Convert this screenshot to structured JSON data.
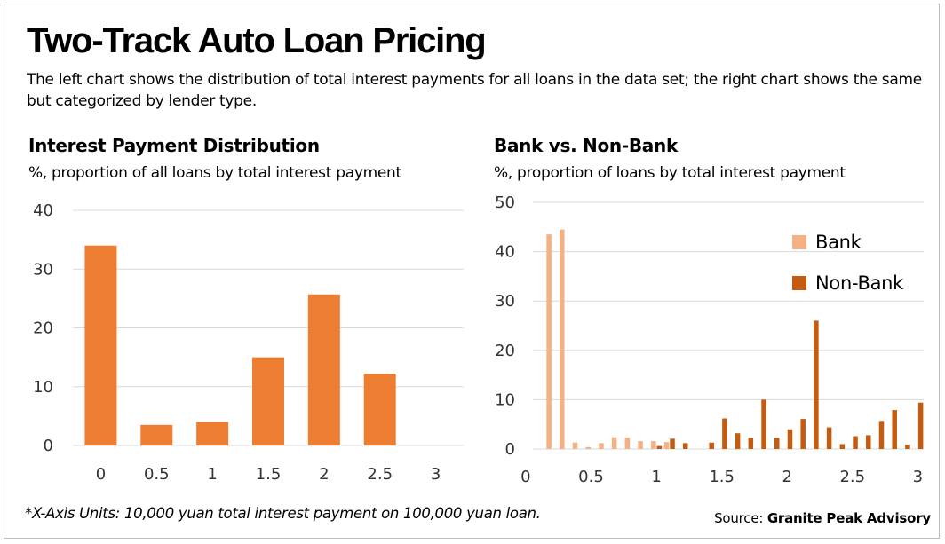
{
  "header": {
    "title": "Two-Track Auto Loan Pricing",
    "subtitle": "The left chart shows the distribution of total interest payments for all loans in the data set; the right chart shows the same but categorized by lender type."
  },
  "footer": {
    "footnote": "*X-Axis Units: 10,000 yuan total interest payment on 100,000 yuan loan.",
    "source_prefix": "Source: ",
    "source_name": "Granite Peak Advisory"
  },
  "colors": {
    "left_bar": "#ED7D31",
    "bank": "#F4B183",
    "non_bank": "#C55A11",
    "gridline": "#D9D9D9"
  },
  "chart_data": [
    {
      "type": "bar",
      "title": "Interest Payment Distribution",
      "subtitle": "%, proportion of all loans by total interest payment",
      "categories": [
        "0",
        "0.5",
        "1",
        "1.5",
        "2",
        "2.5",
        "3"
      ],
      "values": [
        34,
        3.5,
        4,
        15,
        25.7,
        12.2,
        0
      ],
      "ylim": [
        0,
        40
      ],
      "yticks": [
        0,
        10,
        20,
        30,
        40
      ],
      "grid": true
    },
    {
      "type": "bar",
      "title": "Bank vs. Non-Bank",
      "subtitle": "%, proportion of loans by total interest payment",
      "xlim": [
        0,
        3
      ],
      "xticks": [
        "0",
        "0.5",
        "1",
        "1.5",
        "2",
        "2.5",
        "3"
      ],
      "ylim": [
        0,
        50
      ],
      "yticks": [
        0,
        10,
        20,
        30,
        40,
        50
      ],
      "grid": true,
      "legend_position": "top-right",
      "x": [
        0.2,
        0.3,
        0.4,
        0.5,
        0.6,
        0.7,
        0.8,
        0.9,
        1.0,
        1.1,
        1.2,
        1.3,
        1.4,
        1.5,
        1.6,
        1.7,
        1.8,
        1.9,
        2.0,
        2.1,
        2.2,
        2.3,
        2.4,
        2.5,
        2.6,
        2.7,
        2.8,
        2.9,
        3.0
      ],
      "series": [
        {
          "name": "Bank",
          "values": [
            43.5,
            44.5,
            1.3,
            0.4,
            1.2,
            2.4,
            2.3,
            1.6,
            1.6,
            1.4,
            0,
            0,
            0,
            0,
            0,
            0,
            0,
            0,
            0,
            0,
            0,
            0,
            0,
            0,
            0,
            0,
            0,
            0,
            0
          ]
        },
        {
          "name": "Non-Bank",
          "values": [
            0,
            0,
            0,
            0,
            0,
            0,
            0,
            0,
            0.6,
            2.1,
            1.2,
            0,
            1.3,
            6.2,
            3.2,
            2.3,
            10.0,
            2.3,
            4.0,
            6.1,
            26.0,
            4.4,
            1.0,
            2.6,
            2.8,
            5.7,
            7.9,
            0.9,
            9.4
          ]
        }
      ]
    }
  ]
}
